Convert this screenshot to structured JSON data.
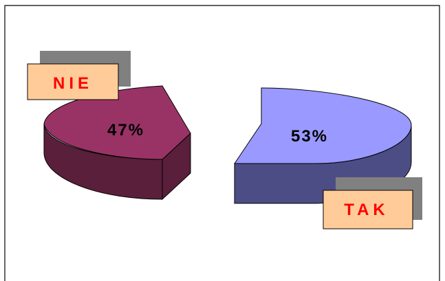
{
  "chart_data": {
    "type": "pie",
    "style": "3d-exploded",
    "slices": [
      {
        "label": "NIE",
        "value": 47,
        "value_label": "47%",
        "top_color": "#993366",
        "side_color": "#5a1f3a"
      },
      {
        "label": "TAK",
        "value": 53,
        "value_label": "53%",
        "top_color": "#9999ff",
        "side_color": "#4d4d85"
      }
    ],
    "label_box_color": "#ffcc99",
    "label_text_color": "#ff0000",
    "label_shadow_color": "#808080",
    "value_text_color": "#000000"
  }
}
